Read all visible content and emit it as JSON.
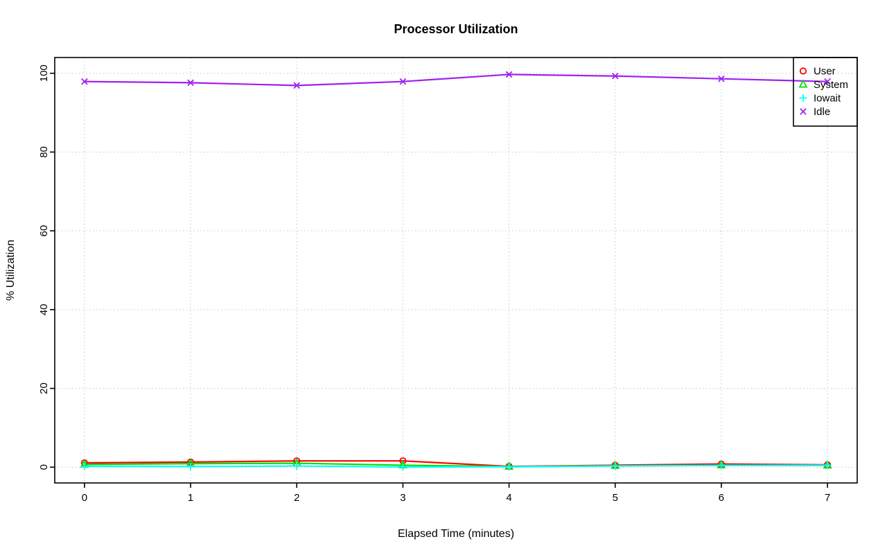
{
  "figure": {
    "background": "#ffffff",
    "text_color": "#000000"
  },
  "chart_data": {
    "type": "line",
    "title": "Processor Utilization",
    "xlabel": "Elapsed Time (minutes)",
    "ylabel": "% Utilization",
    "x": [
      0,
      1,
      2,
      3,
      4,
      5,
      6,
      7
    ],
    "xticks": [
      0,
      1,
      2,
      3,
      4,
      5,
      6,
      7
    ],
    "yticks": [
      0,
      20,
      40,
      60,
      80,
      100
    ],
    "xlim": [
      0,
      7
    ],
    "ylim": [
      0,
      100
    ],
    "grid": true,
    "grid_style": "dotted",
    "grid_color": "#c6c6c6",
    "box_color": "#000000",
    "legend_position": "top-right",
    "series": [
      {
        "name": "User",
        "color": "#ff0000",
        "marker": "circle",
        "values": [
          1.1,
          1.3,
          1.6,
          1.6,
          0.2,
          0.5,
          0.8,
          0.6
        ]
      },
      {
        "name": "System",
        "color": "#00dd00",
        "marker": "triangle",
        "values": [
          0.7,
          0.9,
          1.0,
          0.5,
          0.15,
          0.35,
          0.5,
          0.45
        ]
      },
      {
        "name": "Iowait",
        "color": "#00ffff",
        "marker": "plus",
        "values": [
          0.25,
          0.15,
          0.3,
          0.05,
          0.1,
          0.3,
          0.45,
          0.5
        ]
      },
      {
        "name": "Idle",
        "color": "#a020f0",
        "marker": "x",
        "values": [
          97.9,
          97.6,
          96.9,
          97.9,
          99.7,
          99.3,
          98.6,
          97.9
        ]
      }
    ]
  }
}
